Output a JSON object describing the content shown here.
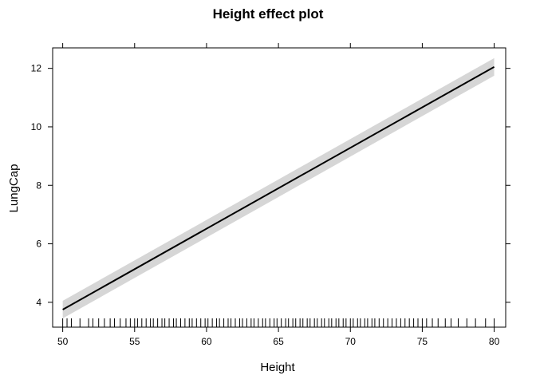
{
  "chart_data": {
    "type": "line",
    "title": "Height effect plot",
    "xlabel": "Height",
    "ylabel": "LungCap",
    "xlim": [
      49.3,
      80.8
    ],
    "ylim": [
      3.15,
      12.7
    ],
    "x_ticks": [
      50,
      55,
      60,
      65,
      70,
      75,
      80
    ],
    "x_tick_labels": [
      "50",
      "55",
      "60",
      "65",
      "70",
      "75",
      "80"
    ],
    "y_ticks": [
      4,
      6,
      8,
      10,
      12
    ],
    "y_tick_labels": [
      "4",
      "6",
      "8",
      "10",
      "12"
    ],
    "grid": false,
    "series": [
      {
        "x": [
          50,
          80
        ],
        "y": [
          3.75,
          12.05
        ],
        "lower": [
          3.45,
          11.75
        ],
        "upper": [
          4.05,
          12.35
        ]
      }
    ],
    "rug_x": [
      50.0,
      50.3,
      50.6,
      51.2,
      51.8,
      52.1,
      52.5,
      52.9,
      53.3,
      53.6,
      54.0,
      54.4,
      54.7,
      55.0,
      55.2,
      55.5,
      55.8,
      56.1,
      56.3,
      56.6,
      56.9,
      57.1,
      57.4,
      57.7,
      57.9,
      58.2,
      58.5,
      58.8,
      59.0,
      59.3,
      59.6,
      59.9,
      60.1,
      60.4,
      60.7,
      60.9,
      61.2,
      61.5,
      61.7,
      62.0,
      62.3,
      62.5,
      62.8,
      63.1,
      63.3,
      63.6,
      63.9,
      64.1,
      64.4,
      64.7,
      64.9,
      65.2,
      65.5,
      65.7,
      66.0,
      66.2,
      66.5,
      66.7,
      67.0,
      67.2,
      67.5,
      67.7,
      68.0,
      68.2,
      68.5,
      68.7,
      69.0,
      69.2,
      69.5,
      69.7,
      70.0,
      70.2,
      70.5,
      70.7,
      71.0,
      71.2,
      71.5,
      71.7,
      72.0,
      72.3,
      72.6,
      72.9,
      73.2,
      73.5,
      73.8,
      74.1,
      74.4,
      74.7,
      75.0,
      75.3,
      75.7,
      76.1,
      76.6,
      77.0,
      77.5,
      78.1,
      78.7,
      79.4,
      80.0
    ]
  }
}
